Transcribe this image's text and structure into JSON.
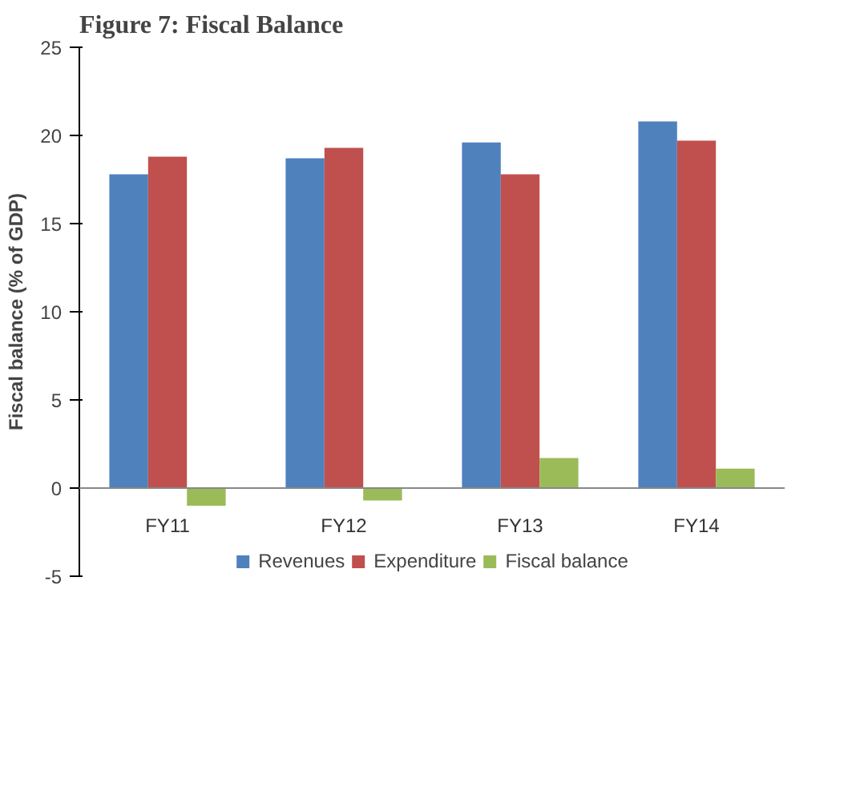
{
  "chart_data": {
    "type": "bar",
    "title": "Figure 7: Fiscal Balance",
    "ylabel": "Fiscal balance (% of GDP)",
    "categories": [
      "FY11",
      "FY12",
      "FY13",
      "FY14"
    ],
    "series": [
      {
        "name": "Revenues",
        "color": "#4f81bd",
        "values": [
          17.8,
          18.7,
          19.6,
          20.8
        ]
      },
      {
        "name": "Expenditure",
        "color": "#c0504d",
        "values": [
          18.8,
          19.3,
          17.8,
          19.7
        ]
      },
      {
        "name": "Fiscal balance",
        "color": "#9bbb59",
        "values": [
          -1.0,
          -0.7,
          1.7,
          1.1
        ]
      }
    ],
    "ylim": [
      -5,
      25
    ],
    "yticks": [
      -5,
      0,
      5,
      10,
      15,
      20,
      25
    ],
    "grid": false,
    "legend": "bottom"
  }
}
